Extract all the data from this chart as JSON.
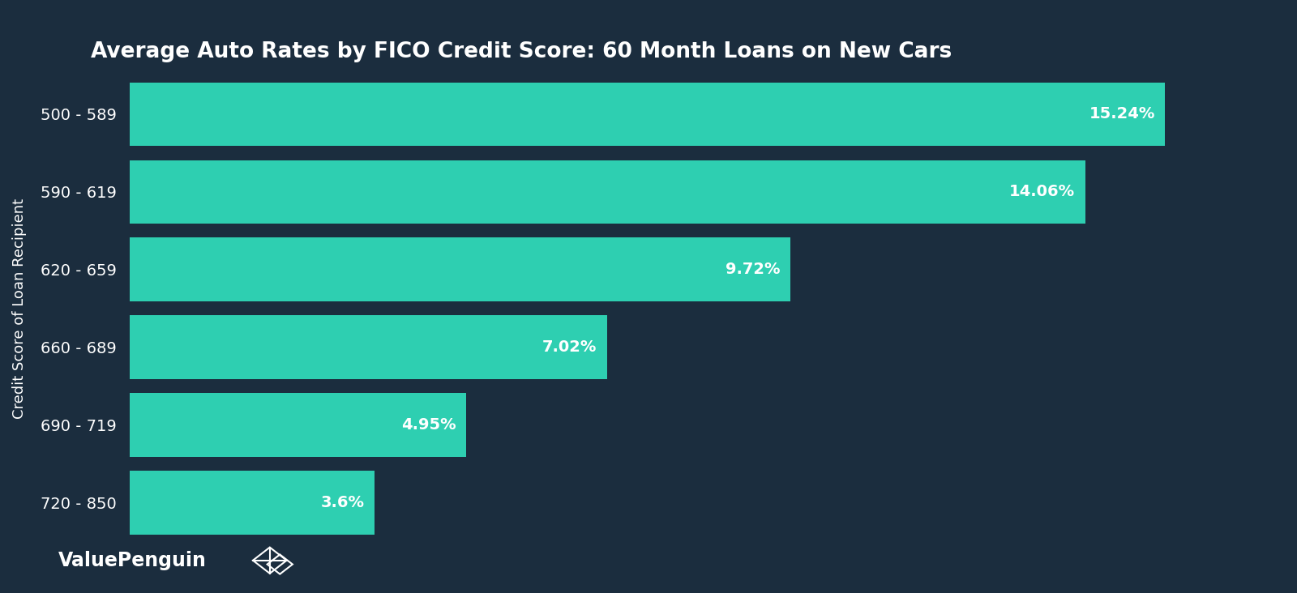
{
  "title": "Average Auto Rates by FICO Credit Score: 60 Month Loans on New Cars",
  "ylabel": "Credit Score of Loan Recipient",
  "categories": [
    "500 - 589",
    "590 - 619",
    "620 - 659",
    "660 - 689",
    "690 - 719",
    "720 - 850"
  ],
  "values": [
    15.24,
    14.06,
    9.72,
    7.02,
    4.95,
    3.6
  ],
  "labels": [
    "15.24%",
    "14.06%",
    "9.72%",
    "7.02%",
    "4.95%",
    "3.6%"
  ],
  "bar_color": "#2ecfb1",
  "background_color": "#1b2d3e",
  "text_color": "#ffffff",
  "xlabel_color": "#9aacbb",
  "title_color": "#ffffff",
  "xlim": [
    0,
    17
  ],
  "title_fontsize": 19,
  "label_fontsize": 14,
  "tick_fontsize": 14,
  "xlabel_fontsize": 13,
  "ylabel_fontsize": 13,
  "watermark": "ValuePenguin",
  "bar_height": 0.82
}
